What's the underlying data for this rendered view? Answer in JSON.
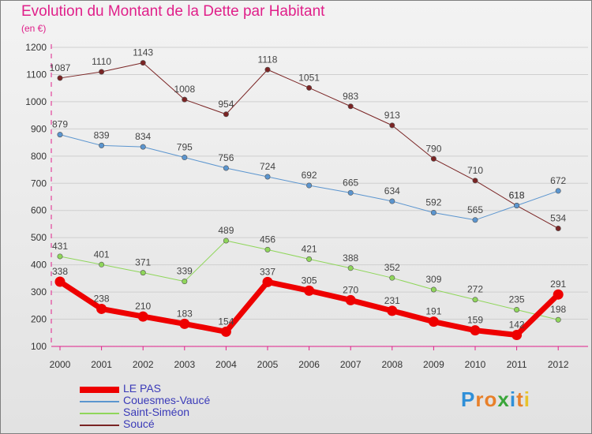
{
  "header": {
    "title": "Evolution du Montant de la Dette par Habitant",
    "unit": "(en €)"
  },
  "logo": {
    "text": "Proxiti",
    "letters": [
      {
        "char": "P",
        "color": "#2f8fd8"
      },
      {
        "char": "r",
        "color": "#e8802a"
      },
      {
        "char": "o",
        "color": "#e8802a"
      },
      {
        "char": "x",
        "color": "#3aa63a"
      },
      {
        "char": "i",
        "color": "#2f8fd8"
      },
      {
        "char": "t",
        "color": "#e8802a"
      },
      {
        "char": "i",
        "color": "#e8c22a"
      }
    ]
  },
  "colors": {
    "title": "#e0208a",
    "axis": "#e0208a",
    "tick_labels": "#333333",
    "grid": "#cfcfcf",
    "legend_text": "#3a3ab8"
  },
  "chart_data": {
    "type": "line",
    "title": "Evolution du Montant de la Dette par Habitant",
    "ylabel": "(en €)",
    "xlabel": "",
    "x": [
      "2000",
      "2001",
      "2002",
      "2003",
      "2004",
      "2005",
      "2006",
      "2007",
      "2008",
      "2009",
      "2010",
      "2011",
      "2012"
    ],
    "yticks": [
      "100",
      "200",
      "300",
      "400",
      "500",
      "600",
      "700",
      "800",
      "900",
      "1000",
      "1100",
      "1200"
    ],
    "ylim": [
      100,
      1200
    ],
    "grid": "horizontal",
    "legend_position": "bottom-left",
    "series": [
      {
        "name": "Soucé",
        "color": "#7a2424",
        "width": 1,
        "values": [
          1087,
          1110,
          1143,
          1008,
          954,
          1118,
          1051,
          983,
          913,
          790,
          710,
          618,
          534
        ],
        "labels": [
          "1087",
          "1110",
          "1143",
          "1008",
          "954",
          "1118",
          "1051",
          "983",
          "913",
          "790",
          "710",
          "618",
          "534"
        ]
      },
      {
        "name": "Couesmes-Vaucé",
        "color": "#5b95cf",
        "width": 1,
        "values": [
          879,
          839,
          834,
          795,
          756,
          724,
          692,
          665,
          634,
          592,
          565,
          618,
          672
        ],
        "labels": [
          "879",
          "839",
          "834",
          "795",
          "756",
          "724",
          "692",
          "665",
          "634",
          "592",
          "565",
          "618",
          "672"
        ]
      },
      {
        "name": "Saint-Siméon",
        "color": "#8fd65a",
        "width": 1,
        "values": [
          431,
          401,
          371,
          339,
          489,
          456,
          421,
          388,
          352,
          309,
          272,
          235,
          198
        ],
        "labels": [
          "431",
          "401",
          "371",
          "339",
          "489",
          "456",
          "421",
          "388",
          "352",
          "309",
          "272",
          "235",
          "198"
        ]
      },
      {
        "name": "LE PAS",
        "color": "#ee0000",
        "width": 7,
        "values": [
          338,
          238,
          210,
          183,
          154,
          337,
          305,
          270,
          231,
          191,
          159,
          142,
          291
        ],
        "labels": [
          "338",
          "238",
          "210",
          "183",
          "154",
          "337",
          "305",
          "270",
          "231",
          "191",
          "159",
          "142",
          "291"
        ]
      }
    ],
    "legend_order": [
      "LE PAS",
      "Couesmes-Vaucé",
      "Saint-Siméon",
      "Soucé"
    ]
  }
}
